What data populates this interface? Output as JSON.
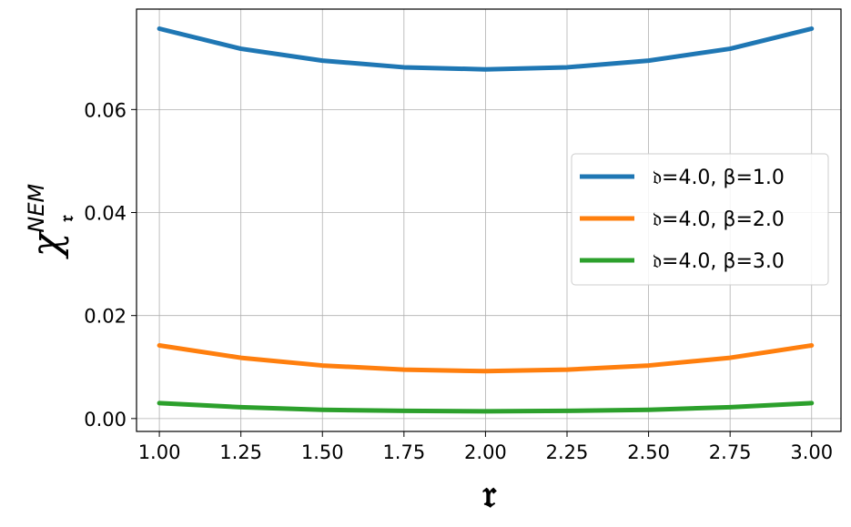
{
  "chart_data": {
    "type": "line",
    "title": "",
    "xlabel": "𝔯",
    "ylabel": {
      "main": "χ",
      "superscript": "NEM",
      "subscript": "𝔯"
    },
    "xlim": [
      0.93,
      3.09
    ],
    "ylim": [
      -0.0025,
      0.0795
    ],
    "xticks": [
      1.0,
      1.25,
      1.5,
      1.75,
      2.0,
      2.25,
      2.5,
      2.75,
      3.0
    ],
    "xtick_labels": [
      "1.00",
      "1.25",
      "1.50",
      "1.75",
      "2.00",
      "2.25",
      "2.50",
      "2.75",
      "3.00"
    ],
    "yticks": [
      0.0,
      0.02,
      0.04,
      0.06
    ],
    "ytick_labels": [
      "0.00",
      "0.02",
      "0.04",
      "0.06"
    ],
    "grid": true,
    "legend_position": "center-right",
    "x": [
      1.0,
      1.25,
      1.5,
      1.75,
      2.0,
      2.25,
      2.5,
      2.75,
      3.0
    ],
    "series": [
      {
        "name": "𝔡=4.0, β=1.0",
        "color": "#1f77b4",
        "values": [
          0.0757,
          0.0718,
          0.0695,
          0.0682,
          0.0678,
          0.0682,
          0.0695,
          0.0718,
          0.0757
        ]
      },
      {
        "name": "𝔡=4.0, β=2.0",
        "color": "#ff7f0e",
        "values": [
          0.0142,
          0.0118,
          0.0103,
          0.0095,
          0.0092,
          0.0095,
          0.0103,
          0.0118,
          0.0142
        ]
      },
      {
        "name": "𝔡=4.0, β=3.0",
        "color": "#2ca02c",
        "values": [
          0.003,
          0.0022,
          0.0017,
          0.0015,
          0.0014,
          0.0015,
          0.0017,
          0.0022,
          0.003
        ]
      }
    ]
  }
}
